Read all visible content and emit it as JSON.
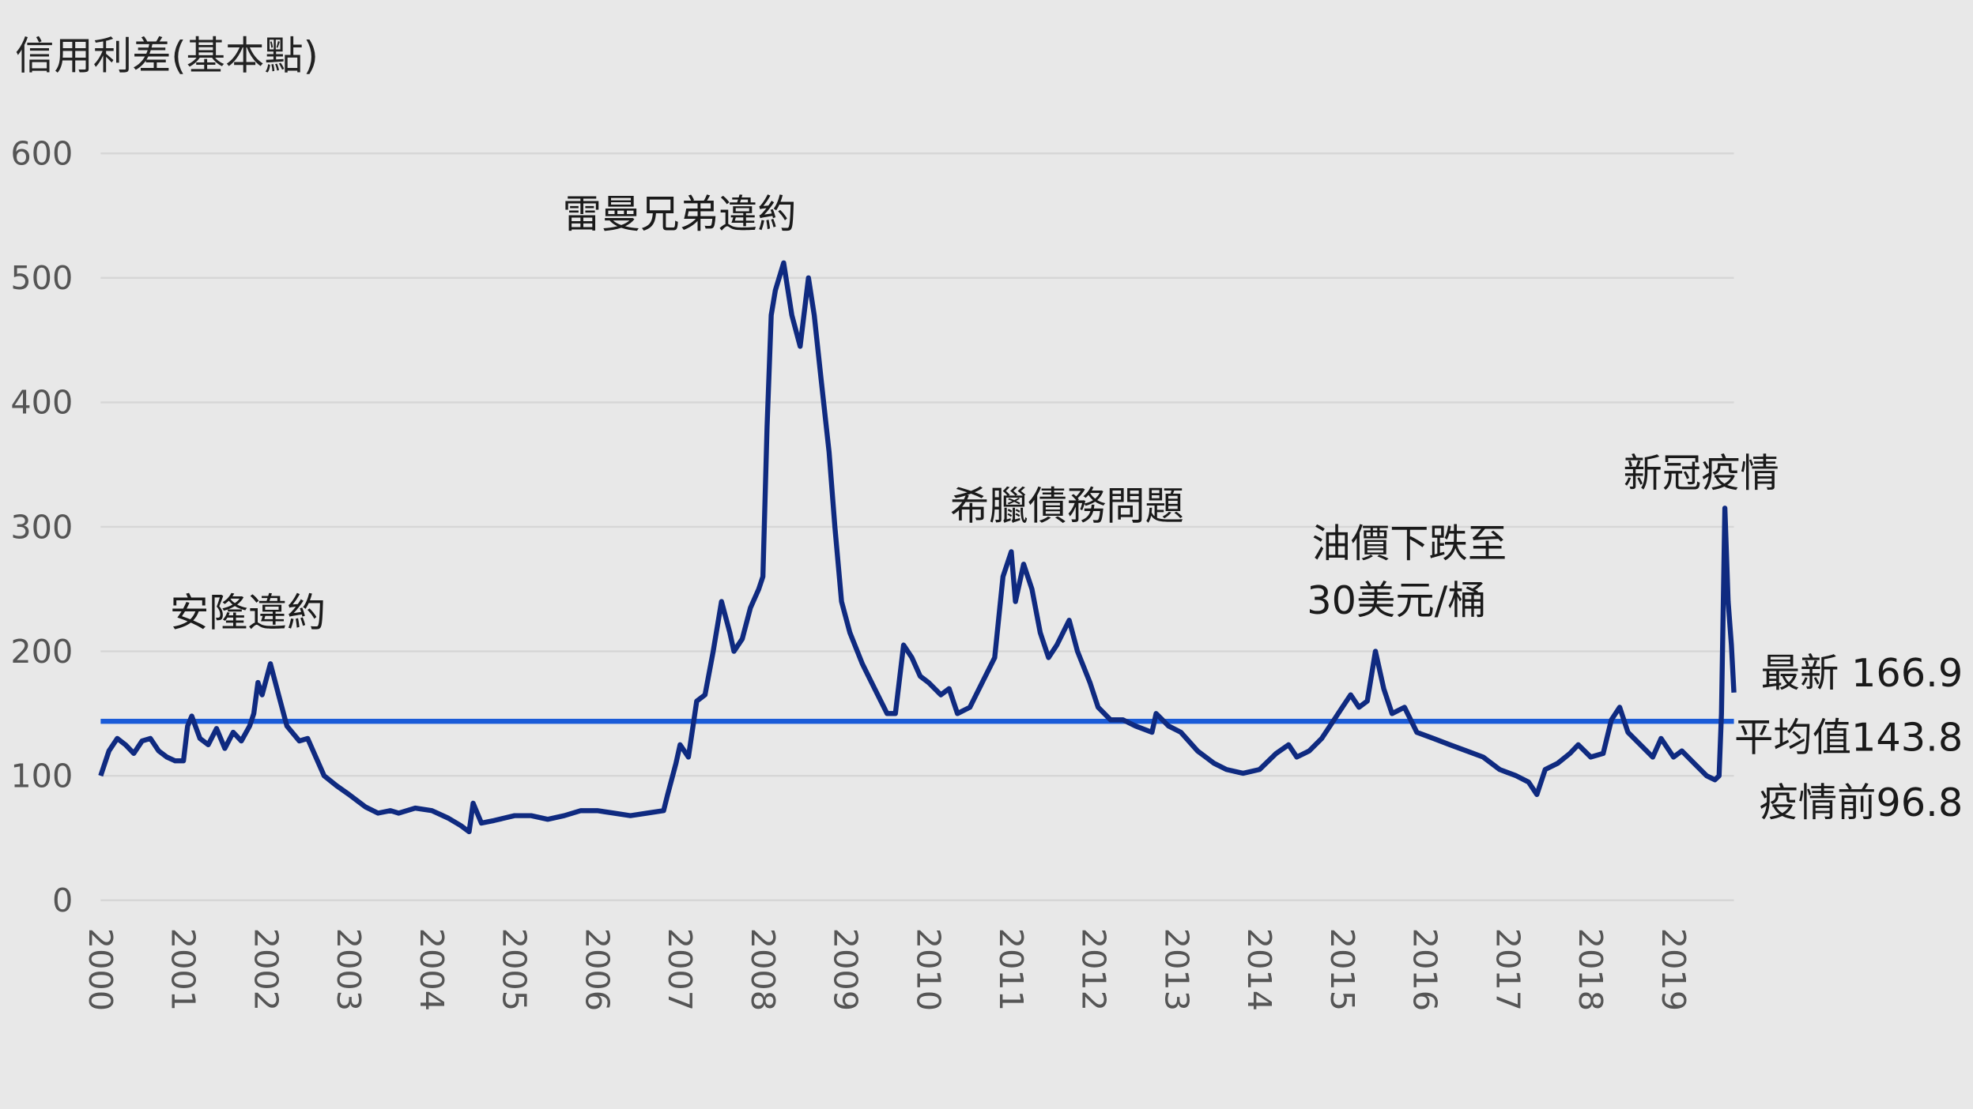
{
  "chart_data": {
    "type": "line",
    "y_axis_label": "信用利差(基本點)",
    "x": [
      2000.0,
      2000.1,
      2000.2,
      2000.3,
      2000.4,
      2000.5,
      2000.6,
      2000.7,
      2000.8,
      2000.9,
      2001.0,
      2001.05,
      2001.1,
      2001.2,
      2001.3,
      2001.4,
      2001.5,
      2001.6,
      2001.7,
      2001.8,
      2001.85,
      2001.9,
      2001.95,
      2002.05,
      2002.15,
      2002.25,
      2002.4,
      2002.5,
      2002.6,
      2002.7,
      2002.85,
      2003.0,
      2003.2,
      2003.35,
      2003.5,
      2003.6,
      2003.8,
      2004.0,
      2004.2,
      2004.35,
      2004.45,
      2004.5,
      2004.6,
      2004.75,
      2005.0,
      2005.2,
      2005.4,
      2005.6,
      2005.8,
      2006.0,
      2006.2,
      2006.4,
      2006.6,
      2006.8,
      2006.85,
      2006.95,
      2007.0,
      2007.1,
      2007.2,
      2007.3,
      2007.4,
      2007.5,
      2007.6,
      2007.65,
      2007.75,
      2007.85,
      2007.95,
      2008.0,
      2008.05,
      2008.1,
      2008.15,
      2008.25,
      2008.35,
      2008.45,
      2008.55,
      2008.62,
      2008.7,
      2008.8,
      2008.87,
      2008.95,
      2009.05,
      2009.2,
      2009.35,
      2009.5,
      2009.6,
      2009.7,
      2009.8,
      2009.9,
      2010.0,
      2010.15,
      2010.25,
      2010.35,
      2010.5,
      2010.65,
      2010.8,
      2010.9,
      2011.0,
      2011.05,
      2011.15,
      2011.25,
      2011.35,
      2011.45,
      2011.55,
      2011.7,
      2011.8,
      2011.95,
      2012.05,
      2012.2,
      2012.35,
      2012.5,
      2012.7,
      2012.75,
      2012.9,
      2013.05,
      2013.25,
      2013.45,
      2013.6,
      2013.8,
      2014.0,
      2014.2,
      2014.35,
      2014.45,
      2014.6,
      2014.75,
      2014.9,
      2015.0,
      2015.1,
      2015.2,
      2015.3,
      2015.4,
      2015.5,
      2015.6,
      2015.75,
      2015.9,
      2016.1,
      2016.3,
      2016.5,
      2016.7,
      2016.9,
      2017.1,
      2017.25,
      2017.35,
      2017.45,
      2017.6,
      2017.75,
      2017.85,
      2018.0,
      2018.15,
      2018.25,
      2018.35,
      2018.45,
      2018.6,
      2018.75,
      2018.85,
      2019.0,
      2019.1,
      2019.25,
      2019.4,
      2019.5,
      2019.55,
      2019.58,
      2019.62,
      2019.66,
      2019.7,
      2019.73
    ],
    "values": [
      100,
      120,
      130,
      125,
      118,
      128,
      130,
      120,
      115,
      112,
      112,
      140,
      148,
      130,
      125,
      138,
      122,
      135,
      128,
      140,
      150,
      175,
      165,
      190,
      165,
      140,
      128,
      130,
      115,
      100,
      92,
      85,
      75,
      70,
      72,
      70,
      74,
      72,
      66,
      60,
      55,
      78,
      62,
      64,
      68,
      68,
      65,
      68,
      72,
      72,
      70,
      68,
      70,
      72,
      85,
      110,
      125,
      115,
      160,
      165,
      200,
      240,
      215,
      200,
      210,
      235,
      250,
      260,
      380,
      470,
      490,
      512,
      470,
      445,
      500,
      470,
      420,
      360,
      300,
      240,
      215,
      190,
      170,
      150,
      150,
      205,
      195,
      180,
      175,
      165,
      170,
      150,
      155,
      175,
      195,
      260,
      280,
      240,
      270,
      250,
      215,
      195,
      205,
      225,
      200,
      175,
      155,
      145,
      145,
      140,
      135,
      150,
      140,
      135,
      120,
      110,
      105,
      102,
      105,
      118,
      125,
      115,
      120,
      130,
      145,
      155,
      165,
      155,
      160,
      200,
      170,
      150,
      155,
      135,
      130,
      125,
      120,
      115,
      105,
      100,
      95,
      85,
      105,
      110,
      118,
      125,
      115,
      118,
      145,
      155,
      135,
      125,
      115,
      130,
      115,
      120,
      110,
      100,
      96.8,
      100,
      150,
      315,
      240,
      205,
      166.9
    ],
    "color": "#0f2a80",
    "xlim": [
      2000,
      2019.73
    ],
    "xticks": [
      2000,
      2001,
      2002,
      2003,
      2004,
      2005,
      2006,
      2007,
      2008,
      2009,
      2010,
      2011,
      2012,
      2013,
      2014,
      2015,
      2016,
      2017,
      2018,
      2019
    ],
    "ylim": [
      0,
      600
    ],
    "yticks": [
      0,
      100,
      200,
      300,
      400,
      500,
      600
    ],
    "grid": true,
    "mean_line": {
      "value": 143.8,
      "color": "#1a5bd8"
    },
    "annotations": [
      "安隆違約",
      "雷曼兄弟違約",
      "希臘債務問題",
      "油價下跌至",
      "30美元/桶",
      "新冠疫情"
    ],
    "side_labels": [
      "最新 166.9",
      "平均值143.8",
      "疫情前96.8"
    ]
  }
}
